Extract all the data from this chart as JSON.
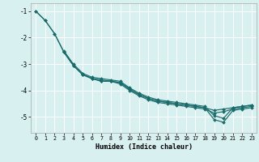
{
  "xlabel": "Humidex (Indice chaleur)",
  "background_color": "#d8f0ef",
  "grid_color": "#ffffff",
  "line_color": "#1a6b6b",
  "xlim": [
    -0.5,
    23.5
  ],
  "ylim": [
    -5.6,
    -0.7
  ],
  "yticks": [
    -5,
    -4,
    -3,
    -2,
    -1
  ],
  "xticks": [
    0,
    1,
    2,
    3,
    4,
    5,
    6,
    7,
    8,
    9,
    10,
    11,
    12,
    13,
    14,
    15,
    16,
    17,
    18,
    19,
    20,
    21,
    22,
    23
  ],
  "lines": [
    {
      "x": [
        0,
        1,
        2,
        3,
        4,
        5,
        6,
        7,
        8,
        9,
        10,
        11,
        12,
        13,
        14,
        15,
        16,
        17,
        18,
        19,
        20,
        21,
        22,
        23
      ],
      "y": [
        -1.0,
        -1.35,
        -1.85,
        -2.55,
        -3.05,
        -3.4,
        -3.55,
        -3.65,
        -3.65,
        -3.7,
        -3.95,
        -4.15,
        -4.3,
        -4.4,
        -4.45,
        -4.5,
        -4.55,
        -4.6,
        -4.65,
        -4.75,
        -4.7,
        -4.65,
        -4.6,
        -4.55
      ]
    },
    {
      "x": [
        0,
        1,
        2,
        3,
        4,
        5,
        6,
        7,
        8,
        9,
        10,
        11,
        12,
        13,
        14,
        15,
        16,
        17,
        18,
        19,
        20,
        21,
        22,
        23
      ],
      "y": [
        -1.0,
        -1.35,
        -1.85,
        -2.55,
        -3.05,
        -3.4,
        -3.55,
        -3.65,
        -3.65,
        -3.75,
        -4.0,
        -4.2,
        -4.35,
        -4.45,
        -4.5,
        -4.55,
        -4.6,
        -4.65,
        -4.7,
        -4.85,
        -4.8,
        -4.7,
        -4.65,
        -4.6
      ]
    },
    {
      "x": [
        3,
        4,
        5,
        6,
        7,
        8,
        9,
        10,
        11,
        12,
        13,
        14,
        15,
        16,
        17,
        18,
        19,
        20,
        21,
        22,
        23
      ],
      "y": [
        -2.5,
        -3.0,
        -3.35,
        -3.5,
        -3.55,
        -3.6,
        -3.65,
        -3.9,
        -4.1,
        -4.25,
        -4.35,
        -4.4,
        -4.45,
        -4.5,
        -4.55,
        -4.6,
        -4.95,
        -5.05,
        -4.65,
        -4.6,
        -4.55
      ]
    },
    {
      "x": [
        3,
        4,
        5,
        6,
        7,
        8,
        9,
        10,
        11,
        12,
        13,
        14,
        15,
        16,
        17,
        18,
        19,
        20,
        21,
        22,
        23
      ],
      "y": [
        -2.55,
        -3.05,
        -3.4,
        -3.55,
        -3.6,
        -3.65,
        -3.7,
        -3.95,
        -4.15,
        -4.3,
        -4.4,
        -4.45,
        -4.5,
        -4.55,
        -4.6,
        -4.65,
        -5.1,
        -5.2,
        -4.75,
        -4.7,
        -4.65
      ]
    }
  ]
}
